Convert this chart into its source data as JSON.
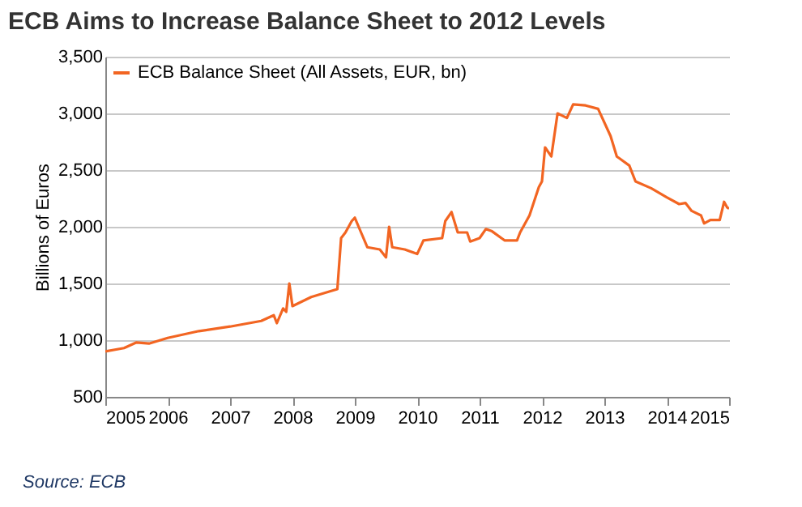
{
  "chart_data": {
    "type": "line",
    "title": "ECB Aims to Increase Balance Sheet to 2012 Levels",
    "ylabel": "Billions of Euros",
    "annotations": [
      "Source: ECB"
    ],
    "x": [
      2005.0,
      2005.3,
      2005.5,
      2005.7,
      2006.0,
      2006.5,
      2007.0,
      2007.5,
      2007.7,
      2007.75,
      2007.85,
      2007.9,
      2007.95,
      2008.0,
      2008.3,
      2008.6,
      2008.72,
      2008.78,
      2008.85,
      2008.95,
      2009.0,
      2009.1,
      2009.2,
      2009.4,
      2009.5,
      2009.55,
      2009.6,
      2009.8,
      2010.0,
      2010.1,
      2010.4,
      2010.45,
      2010.55,
      2010.65,
      2010.8,
      2010.85,
      2011.0,
      2011.1,
      2011.2,
      2011.4,
      2011.6,
      2011.65,
      2011.8,
      2011.95,
      2012.0,
      2012.05,
      2012.15,
      2012.25,
      2012.4,
      2012.5,
      2012.7,
      2012.9,
      2013.1,
      2013.2,
      2013.4,
      2013.5,
      2013.75,
      2014.0,
      2014.2,
      2014.3,
      2014.4,
      2014.55,
      2014.6,
      2014.7,
      2014.85,
      2014.92,
      2014.97,
      2015.0
    ],
    "series": [
      {
        "name": "ECB Balance Sheet (All Assets, EUR, bn)",
        "color": "#f26522",
        "values": [
          900,
          930,
          980,
          970,
          1020,
          1080,
          1120,
          1170,
          1220,
          1150,
          1280,
          1250,
          1500,
          1300,
          1380,
          1430,
          1450,
          1900,
          1950,
          2050,
          2080,
          1950,
          1820,
          1800,
          1730,
          2000,
          1820,
          1800,
          1760,
          1880,
          1900,
          2050,
          2130,
          1950,
          1950,
          1870,
          1900,
          1980,
          1960,
          1880,
          1880,
          1950,
          2100,
          2350,
          2400,
          2700,
          2620,
          3000,
          2960,
          3080,
          3070,
          3040,
          2800,
          2620,
          2540,
          2400,
          2340,
          2260,
          2200,
          2210,
          2140,
          2100,
          2030,
          2060,
          2060,
          2220,
          2170,
          2160
        ]
      }
    ],
    "xlim": [
      2005,
      2015
    ],
    "xticks": [
      2005,
      2006,
      2007,
      2008,
      2009,
      2010,
      2011,
      2012,
      2013,
      2014,
      2015
    ],
    "ylim": [
      500,
      3500
    ],
    "yticks": [
      {
        "value": 500,
        "label": "500"
      },
      {
        "value": 1000,
        "label": "1,000"
      },
      {
        "value": 1500,
        "label": "1,500"
      },
      {
        "value": 2000,
        "label": "2,000"
      },
      {
        "value": 2500,
        "label": "2,500"
      },
      {
        "value": 3000,
        "label": "3,000"
      },
      {
        "value": 3500,
        "label": "3,500"
      }
    ],
    "grid": "y",
    "legend": "top left",
    "marker": "none",
    "line_style": "solid"
  }
}
